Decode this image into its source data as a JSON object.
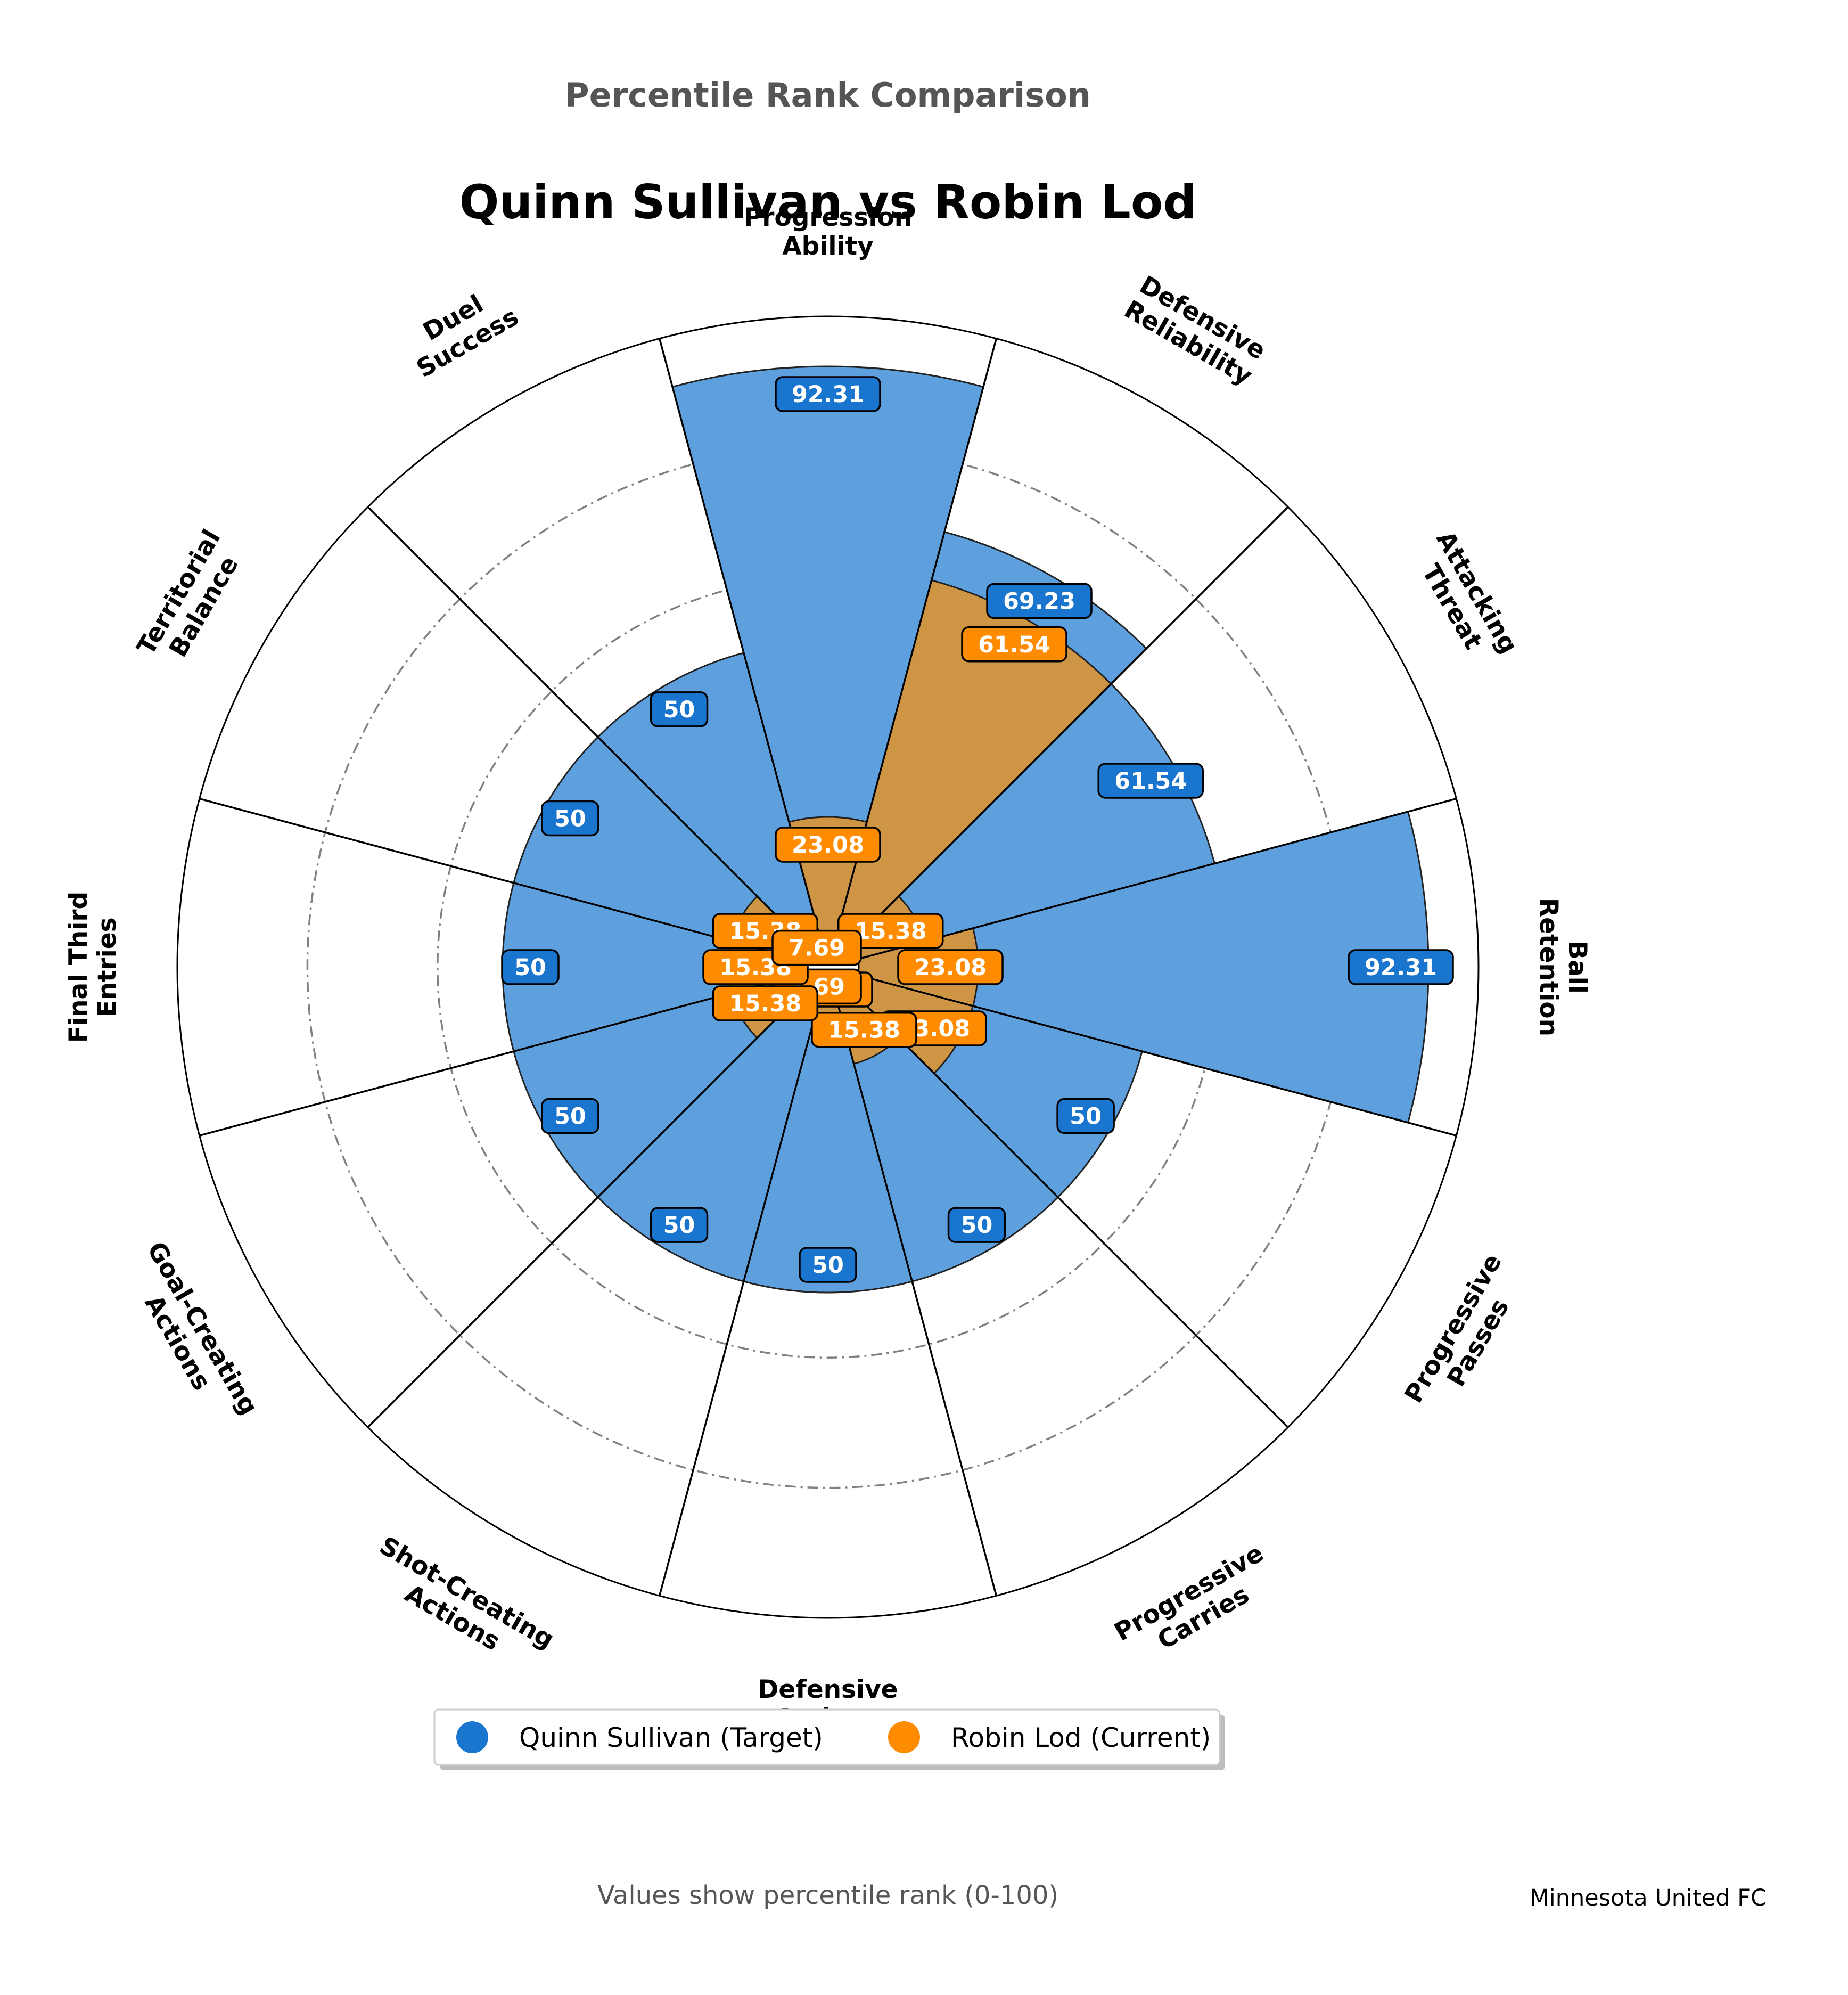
{
  "chart_data": {
    "type": "polar-bar",
    "suptitle": "Percentile Rank Comparison",
    "title": "Quinn Sullivan vs Robin Lod",
    "categories": [
      "Progression\nAbility",
      "Defensive\nReliability",
      "Attacking\nThreat",
      "Ball\nRetention",
      "Progressive\nPasses",
      "Progressive\nCarries",
      "Defensive\nActions",
      "Shot-Creating\nActions",
      "Goal-Creating\nActions",
      "Final Third\nEntries",
      "Territorial\nBalance",
      "Duel\nSuccess"
    ],
    "series": [
      {
        "name": "Quinn Sullivan (Target)",
        "color": "#1a75cf",
        "fill": "#5ea0de",
        "values": [
          92.31,
          69.23,
          61.54,
          92.31,
          50,
          50,
          50,
          50,
          50,
          50,
          50,
          50
        ],
        "labels": [
          "92.31",
          "69.23",
          "61.54",
          "92.31",
          "50",
          "50",
          "50",
          "50",
          "50",
          "50",
          "50",
          "50"
        ]
      },
      {
        "name": "Robin Lod (Current)",
        "color": "#ff8c00",
        "fill": "#d09540",
        "values": [
          23.08,
          61.54,
          15.38,
          23.08,
          23.08,
          15.38,
          7.69,
          7.69,
          15.38,
          15.38,
          15.38,
          7.69
        ],
        "labels": [
          "23.08",
          "61.54",
          "15.38",
          "23.08",
          "23.08",
          "15.38",
          "7.69",
          "7.69",
          "15.38",
          "15.38",
          "15.38",
          "7.69"
        ]
      }
    ],
    "rlim": [
      0,
      100
    ],
    "grid": true,
    "legend": "bottom-center"
  },
  "footer": {
    "note": "Values show percentile rank (0-100)",
    "credit": "Minnesota United FC"
  }
}
